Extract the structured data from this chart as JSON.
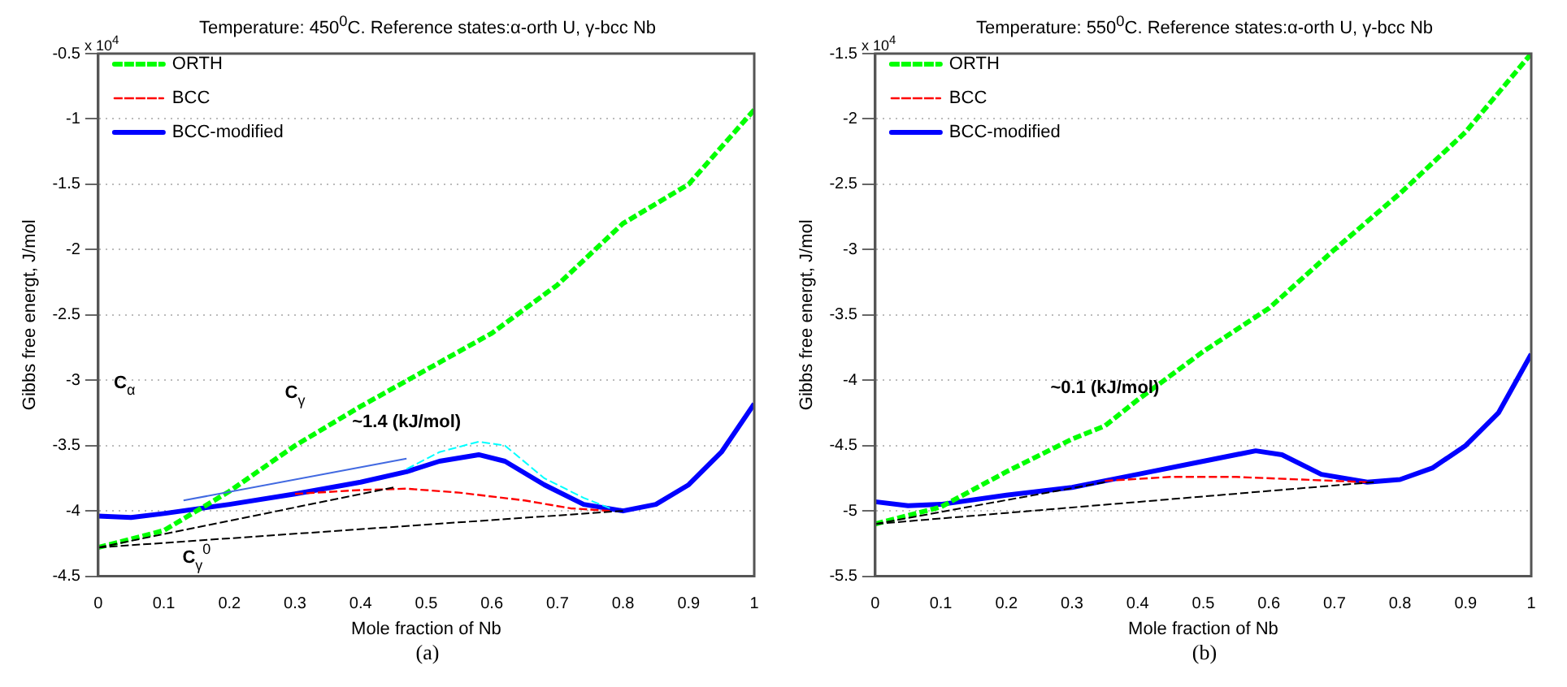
{
  "chart_data": [
    {
      "type": "line",
      "title": "Temperature: 450$^{0}$C. Reference states:α-orth U, γ-bcc Nb",
      "xlabel": "Mole fraction of Nb",
      "ylabel": "Gibbs free energt, J/mol",
      "xlim": [
        0,
        1
      ],
      "ylim": [
        -4.5,
        -0.5
      ],
      "xticks": [
        0,
        0.1,
        0.2,
        0.3,
        0.4,
        0.5,
        0.6,
        0.7,
        0.8,
        0.9,
        1
      ],
      "yticks": [
        -4.5,
        -4,
        -3.5,
        -3,
        -2.5,
        -2,
        -1.5,
        -1,
        -0.5
      ],
      "grid": "y",
      "legend": "top left",
      "series": [
        {
          "name": "ORTH",
          "color": "#00ff00",
          "line_style": "dashed",
          "x": [
            0,
            0.1,
            0.2,
            0.3,
            0.4,
            0.5,
            0.6,
            0.7,
            0.8,
            0.9,
            1
          ],
          "values": [
            -4.28,
            -4.15,
            -3.85,
            -3.5,
            -3.2,
            -2.92,
            -2.64,
            -2.27,
            -1.8,
            -1.5,
            -0.93
          ]
        },
        {
          "name": "BCC",
          "color": "#ff0000",
          "line_style": "dashed",
          "x": [
            0.3,
            0.4,
            0.47,
            0.55,
            0.65,
            0.72,
            0.78
          ],
          "values": [
            -3.87,
            -3.84,
            -3.83,
            -3.86,
            -3.92,
            -3.98,
            -4.0
          ]
        },
        {
          "name": "BCC-modified",
          "color": "#0000ff",
          "line_style": "solid",
          "x": [
            0,
            0.05,
            0.1,
            0.2,
            0.3,
            0.4,
            0.47,
            0.52,
            0.58,
            0.62,
            0.68,
            0.74,
            0.8,
            0.85,
            0.9,
            0.95,
            1
          ],
          "values": [
            -4.04,
            -4.05,
            -4.02,
            -3.95,
            -3.87,
            -3.78,
            -3.7,
            -3.62,
            -3.57,
            -3.62,
            -3.8,
            -3.95,
            -4.0,
            -3.95,
            -3.8,
            -3.55,
            -3.18
          ]
        },
        {
          "color": "#00ffff",
          "line_style": "dashed",
          "x": [
            0.47,
            0.52,
            0.58,
            0.62,
            0.68,
            0.74,
            0.78
          ],
          "values": [
            -3.68,
            -3.55,
            -3.47,
            -3.5,
            -3.75,
            -3.9,
            -3.98
          ]
        },
        {
          "color": "#000000",
          "line_style": "dashed",
          "x": [
            0,
            0.8
          ],
          "values": [
            -4.28,
            -4.0
          ]
        },
        {
          "color": "#000000",
          "line_style": "dashed",
          "x": [
            0,
            0.45
          ],
          "values": [
            -4.28,
            -3.82
          ]
        },
        {
          "color": "#4169e1",
          "line_style": "solid",
          "x": [
            0.13,
            0.47
          ],
          "values": [
            -3.92,
            -3.6
          ]
        }
      ],
      "annotations": [
        "~1.4 (kJ/mol)",
        "C$_{α}$",
        "C$_{γ}$",
        "C$_{γ}$$^{0}$",
        "x 10$^{4}$",
        "(a)"
      ]
    },
    {
      "type": "line",
      "title": "Temperature: 550$^{0}$C. Reference states:α-orth U, γ-bcc Nb",
      "xlabel": "Mole fraction of Nb",
      "ylabel": "Gibbs free energt, J/mol",
      "xlim": [
        0,
        1
      ],
      "ylim": [
        -5.5,
        -1.5
      ],
      "xticks": [
        0,
        0.1,
        0.2,
        0.3,
        0.4,
        0.5,
        0.6,
        0.7,
        0.8,
        0.9,
        1
      ],
      "yticks": [
        -5.5,
        -5,
        -4.5,
        -4,
        -3.5,
        -3,
        -2.5,
        -2,
        -1.5
      ],
      "grid": "y",
      "legend": "top left",
      "series": [
        {
          "name": "ORTH",
          "color": "#00ff00",
          "line_style": "dashed",
          "x": [
            0,
            0.1,
            0.2,
            0.3,
            0.35,
            0.4,
            0.5,
            0.6,
            0.7,
            0.8,
            0.9,
            1
          ],
          "values": [
            -5.1,
            -4.97,
            -4.7,
            -4.45,
            -4.35,
            -4.15,
            -3.78,
            -3.45,
            -3.0,
            -2.57,
            -2.1,
            -1.5
          ]
        },
        {
          "name": "BCC",
          "color": "#ff0000",
          "line_style": "dashed",
          "x": [
            0.35,
            0.45,
            0.55,
            0.65,
            0.75
          ],
          "values": [
            -4.77,
            -4.74,
            -4.74,
            -4.76,
            -4.78
          ]
        },
        {
          "name": "BCC-modified",
          "color": "#0000ff",
          "line_style": "solid",
          "x": [
            0,
            0.05,
            0.1,
            0.2,
            0.3,
            0.35,
            0.4,
            0.5,
            0.58,
            0.62,
            0.68,
            0.75,
            0.8,
            0.85,
            0.9,
            0.95,
            1
          ],
          "values": [
            -4.93,
            -4.96,
            -4.95,
            -4.88,
            -4.82,
            -4.77,
            -4.72,
            -4.62,
            -4.54,
            -4.57,
            -4.72,
            -4.78,
            -4.76,
            -4.67,
            -4.5,
            -4.25,
            -3.8
          ]
        },
        {
          "color": "#000000",
          "line_style": "dashed",
          "x": [
            0,
            0.76
          ],
          "values": [
            -5.1,
            -4.78
          ]
        },
        {
          "color": "#000000",
          "line_style": "dashed",
          "x": [
            0,
            0.35
          ],
          "values": [
            -5.1,
            -4.78
          ]
        }
      ],
      "annotations": [
        "~0.1 (kJ/mol)",
        "x 10$^{4}$",
        "(b)"
      ]
    }
  ]
}
